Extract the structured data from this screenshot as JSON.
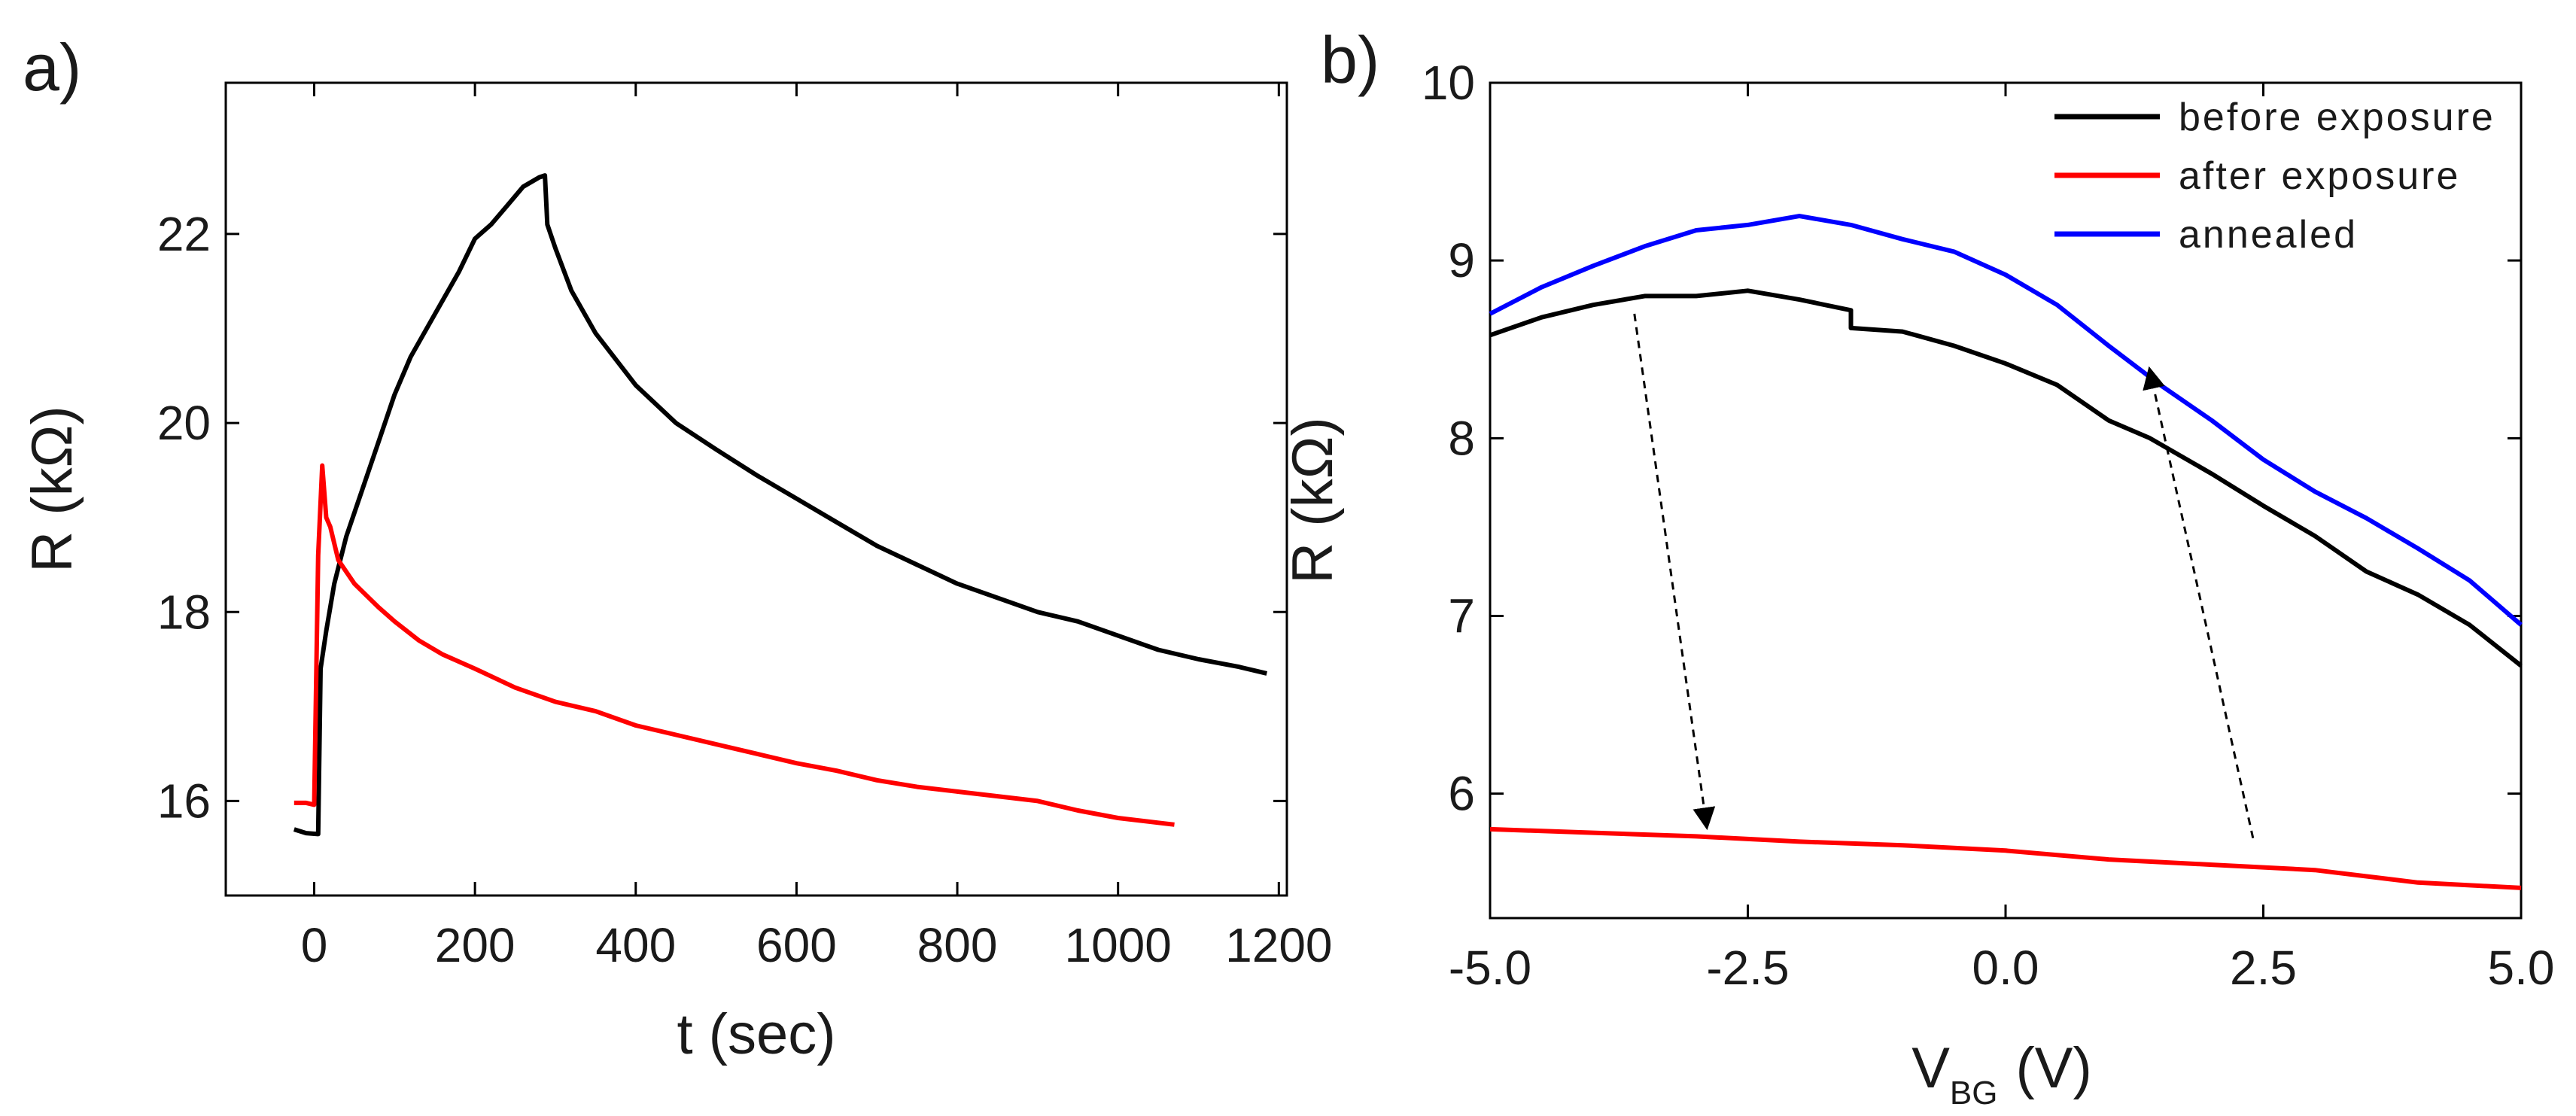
{
  "chart_data": [
    {
      "panel_label": "a)",
      "type": "line",
      "xlabel": "t (sec)",
      "ylabel": "R (kΩ)",
      "xlim": [
        -110,
        1210
      ],
      "ylim": [
        15,
        23.6
      ],
      "xticks": [
        0,
        200,
        400,
        600,
        800,
        1000,
        1200
      ],
      "yticks": [
        16,
        18,
        20,
        22
      ],
      "series": [
        {
          "name": "black",
          "color": "#000000",
          "points": [
            [
              -25,
              15.7
            ],
            [
              -10,
              15.66
            ],
            [
              5,
              15.65
            ],
            [
              8,
              17.4
            ],
            [
              15,
              17.8
            ],
            [
              25,
              18.3
            ],
            [
              40,
              18.8
            ],
            [
              60,
              19.3
            ],
            [
              80,
              19.8
            ],
            [
              100,
              20.3
            ],
            [
              120,
              20.7
            ],
            [
              150,
              21.15
            ],
            [
              180,
              21.6
            ],
            [
              200,
              21.95
            ],
            [
              220,
              22.1
            ],
            [
              240,
              22.3
            ],
            [
              260,
              22.5
            ],
            [
              280,
              22.6
            ],
            [
              287,
              22.62
            ],
            [
              290,
              22.1
            ],
            [
              300,
              21.85
            ],
            [
              320,
              21.4
            ],
            [
              350,
              20.95
            ],
            [
              400,
              20.4
            ],
            [
              450,
              20.0
            ],
            [
              500,
              19.72
            ],
            [
              550,
              19.45
            ],
            [
              600,
              19.2
            ],
            [
              650,
              18.95
            ],
            [
              700,
              18.7
            ],
            [
              750,
              18.5
            ],
            [
              800,
              18.3
            ],
            [
              850,
              18.15
            ],
            [
              900,
              18.0
            ],
            [
              950,
              17.9
            ],
            [
              1000,
              17.75
            ],
            [
              1050,
              17.6
            ],
            [
              1100,
              17.5
            ],
            [
              1150,
              17.42
            ],
            [
              1185,
              17.35
            ]
          ]
        },
        {
          "name": "red",
          "color": "#ff0000",
          "points": [
            [
              -25,
              15.98
            ],
            [
              -10,
              15.98
            ],
            [
              0,
              15.96
            ],
            [
              5,
              18.6
            ],
            [
              10,
              19.55
            ],
            [
              15,
              19.0
            ],
            [
              20,
              18.9
            ],
            [
              30,
              18.55
            ],
            [
              50,
              18.3
            ],
            [
              80,
              18.05
            ],
            [
              100,
              17.9
            ],
            [
              130,
              17.7
            ],
            [
              160,
              17.55
            ],
            [
              200,
              17.4
            ],
            [
              250,
              17.2
            ],
            [
              300,
              17.05
            ],
            [
              350,
              16.95
            ],
            [
              400,
              16.8
            ],
            [
              450,
              16.7
            ],
            [
              500,
              16.6
            ],
            [
              550,
              16.5
            ],
            [
              600,
              16.4
            ],
            [
              650,
              16.32
            ],
            [
              700,
              16.22
            ],
            [
              750,
              16.15
            ],
            [
              800,
              16.1
            ],
            [
              850,
              16.05
            ],
            [
              900,
              16.0
            ],
            [
              950,
              15.9
            ],
            [
              1000,
              15.82
            ],
            [
              1050,
              15.77
            ],
            [
              1070,
              15.75
            ]
          ]
        }
      ]
    },
    {
      "panel_label": "b)",
      "type": "line",
      "xlabel": "V",
      "xlabel_sub": "BG",
      "xlabel_unit": "(V)",
      "ylabel": "R (kΩ)",
      "xlim": [
        -5.0,
        5.0
      ],
      "ylim": [
        5.3,
        10.0
      ],
      "xticks": [
        "-5.0",
        "-2.5",
        "0.0",
        "2.5",
        "5.0"
      ],
      "yticks": [
        "6",
        "7",
        "8",
        "9",
        "10"
      ],
      "legend": {
        "location": "top-right",
        "entries": [
          "before exposure",
          "after exposure",
          "annealed"
        ]
      },
      "series": [
        {
          "name": "before exposure",
          "color": "#000000",
          "points": [
            [
              -5.0,
              8.58
            ],
            [
              -4.5,
              8.68
            ],
            [
              -4.0,
              8.75
            ],
            [
              -3.5,
              8.8
            ],
            [
              -3.0,
              8.8
            ],
            [
              -2.5,
              8.83
            ],
            [
              -2.0,
              8.78
            ],
            [
              -1.5,
              8.72
            ],
            [
              -1.5,
              8.62
            ],
            [
              -1.0,
              8.6
            ],
            [
              -0.5,
              8.52
            ],
            [
              0.0,
              8.42
            ],
            [
              0.5,
              8.3
            ],
            [
              1.0,
              8.1
            ],
            [
              1.4,
              8.0
            ],
            [
              2.0,
              7.8
            ],
            [
              2.5,
              7.62
            ],
            [
              3.0,
              7.45
            ],
            [
              3.5,
              7.25
            ],
            [
              4.0,
              7.12
            ],
            [
              4.5,
              6.95
            ],
            [
              5.0,
              6.72
            ]
          ]
        },
        {
          "name": "after exposure",
          "color": "#ff0000",
          "points": [
            [
              -5.0,
              5.8
            ],
            [
              -4.0,
              5.78
            ],
            [
              -3.0,
              5.76
            ],
            [
              -2.0,
              5.73
            ],
            [
              -1.0,
              5.71
            ],
            [
              0.0,
              5.68
            ],
            [
              1.0,
              5.63
            ],
            [
              2.0,
              5.6
            ],
            [
              3.0,
              5.57
            ],
            [
              4.0,
              5.5
            ],
            [
              5.0,
              5.47
            ]
          ]
        },
        {
          "name": "annealed",
          "color": "#0000ff",
          "points": [
            [
              -5.0,
              8.7
            ],
            [
              -4.5,
              8.85
            ],
            [
              -4.0,
              8.97
            ],
            [
              -3.5,
              9.08
            ],
            [
              -3.0,
              9.17
            ],
            [
              -2.5,
              9.2
            ],
            [
              -2.0,
              9.25
            ],
            [
              -1.5,
              9.2
            ],
            [
              -1.0,
              9.12
            ],
            [
              -0.5,
              9.05
            ],
            [
              0.0,
              8.92
            ],
            [
              0.5,
              8.75
            ],
            [
              1.0,
              8.52
            ],
            [
              1.5,
              8.3
            ],
            [
              2.0,
              8.1
            ],
            [
              2.5,
              7.88
            ],
            [
              3.0,
              7.7
            ],
            [
              3.5,
              7.55
            ],
            [
              4.0,
              7.38
            ],
            [
              4.5,
              7.2
            ],
            [
              5.0,
              6.95
            ]
          ]
        }
      ],
      "arrows": [
        {
          "from": [
            -3.6,
            8.7
          ],
          "to": [
            -2.9,
            5.82
          ]
        },
        {
          "from": [
            2.4,
            5.75
          ],
          "to": [
            1.4,
            8.38
          ]
        }
      ]
    }
  ]
}
